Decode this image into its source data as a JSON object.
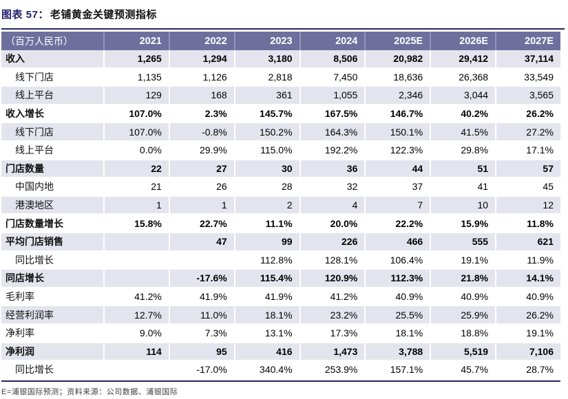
{
  "title": {
    "prefix": "图表 57：",
    "text": "老铺黄金关键预测指标"
  },
  "colors": {
    "header_bg": "#6f6f9e",
    "stripe_bg": "#e4e4ee",
    "rule": "#26265e",
    "title_accent": "#1f1f6e"
  },
  "table": {
    "unit_header": "（百万人民币）",
    "columns": [
      "2021",
      "2022",
      "2023",
      "2024",
      "2025E",
      "2026E",
      "2027E"
    ],
    "rows": [
      {
        "label": "收入",
        "indent": false,
        "bold": true,
        "values": [
          "1,265",
          "1,294",
          "3,180",
          "8,506",
          "20,982",
          "29,412",
          "37,114"
        ]
      },
      {
        "label": "线下门店",
        "indent": true,
        "bold": false,
        "values": [
          "1,135",
          "1,126",
          "2,818",
          "7,450",
          "18,636",
          "26,368",
          "33,549"
        ]
      },
      {
        "label": "线上平台",
        "indent": true,
        "bold": false,
        "values": [
          "129",
          "168",
          "361",
          "1,055",
          "2,346",
          "3,044",
          "3,565"
        ]
      },
      {
        "label": "收入增长",
        "indent": false,
        "bold": true,
        "values": [
          "107.0%",
          "2.3%",
          "145.7%",
          "167.5%",
          "146.7%",
          "40.2%",
          "26.2%"
        ]
      },
      {
        "label": "线下门店",
        "indent": true,
        "bold": false,
        "values": [
          "107.0%",
          "-0.8%",
          "150.2%",
          "164.3%",
          "150.1%",
          "41.5%",
          "27.2%"
        ]
      },
      {
        "label": "线上平台",
        "indent": true,
        "bold": false,
        "values": [
          "0.0%",
          "29.9%",
          "115.0%",
          "192.2%",
          "122.3%",
          "29.8%",
          "17.1%"
        ]
      },
      {
        "label": "门店数量",
        "indent": false,
        "bold": true,
        "values": [
          "22",
          "27",
          "30",
          "36",
          "44",
          "51",
          "57"
        ]
      },
      {
        "label": "中国内地",
        "indent": true,
        "bold": false,
        "values": [
          "21",
          "26",
          "28",
          "32",
          "37",
          "41",
          "45"
        ]
      },
      {
        "label": "港澳地区",
        "indent": true,
        "bold": false,
        "values": [
          "1",
          "1",
          "2",
          "4",
          "7",
          "10",
          "12"
        ]
      },
      {
        "label": "门店数量增长",
        "indent": false,
        "bold": true,
        "values": [
          "15.8%",
          "22.7%",
          "11.1%",
          "20.0%",
          "22.2%",
          "15.9%",
          "11.8%"
        ]
      },
      {
        "label": "平均门店销售",
        "indent": false,
        "bold": true,
        "values": [
          "",
          "47",
          "99",
          "226",
          "466",
          "555",
          "621"
        ]
      },
      {
        "label": "同比增长",
        "indent": true,
        "bold": false,
        "values": [
          "",
          "",
          "112.8%",
          "128.1%",
          "106.4%",
          "19.1%",
          "11.9%"
        ]
      },
      {
        "label": "同店增长",
        "indent": false,
        "bold": true,
        "values": [
          "",
          "-17.6%",
          "115.4%",
          "120.9%",
          "112.3%",
          "21.8%",
          "14.1%"
        ]
      },
      {
        "label": "毛利率",
        "indent": false,
        "bold": false,
        "values": [
          "41.2%",
          "41.9%",
          "41.9%",
          "41.2%",
          "40.9%",
          "40.9%",
          "40.9%"
        ]
      },
      {
        "label": "经营利润率",
        "indent": false,
        "bold": false,
        "values": [
          "12.7%",
          "11.0%",
          "18.1%",
          "23.2%",
          "25.5%",
          "25.9%",
          "26.2%"
        ]
      },
      {
        "label": "净利率",
        "indent": false,
        "bold": false,
        "values": [
          "9.0%",
          "7.3%",
          "13.1%",
          "17.3%",
          "18.1%",
          "18.8%",
          "19.1%"
        ]
      },
      {
        "label": "净利润",
        "indent": false,
        "bold": true,
        "values": [
          "114",
          "95",
          "416",
          "1,473",
          "3,788",
          "5,519",
          "7,106"
        ]
      },
      {
        "label": "同比增长",
        "indent": true,
        "bold": false,
        "values": [
          "",
          "-17.0%",
          "340.4%",
          "253.9%",
          "157.1%",
          "45.7%",
          "28.7%"
        ]
      }
    ]
  },
  "footer": {
    "note": "E=浦银国际预测；资料来源：公司数据、浦银国际"
  }
}
